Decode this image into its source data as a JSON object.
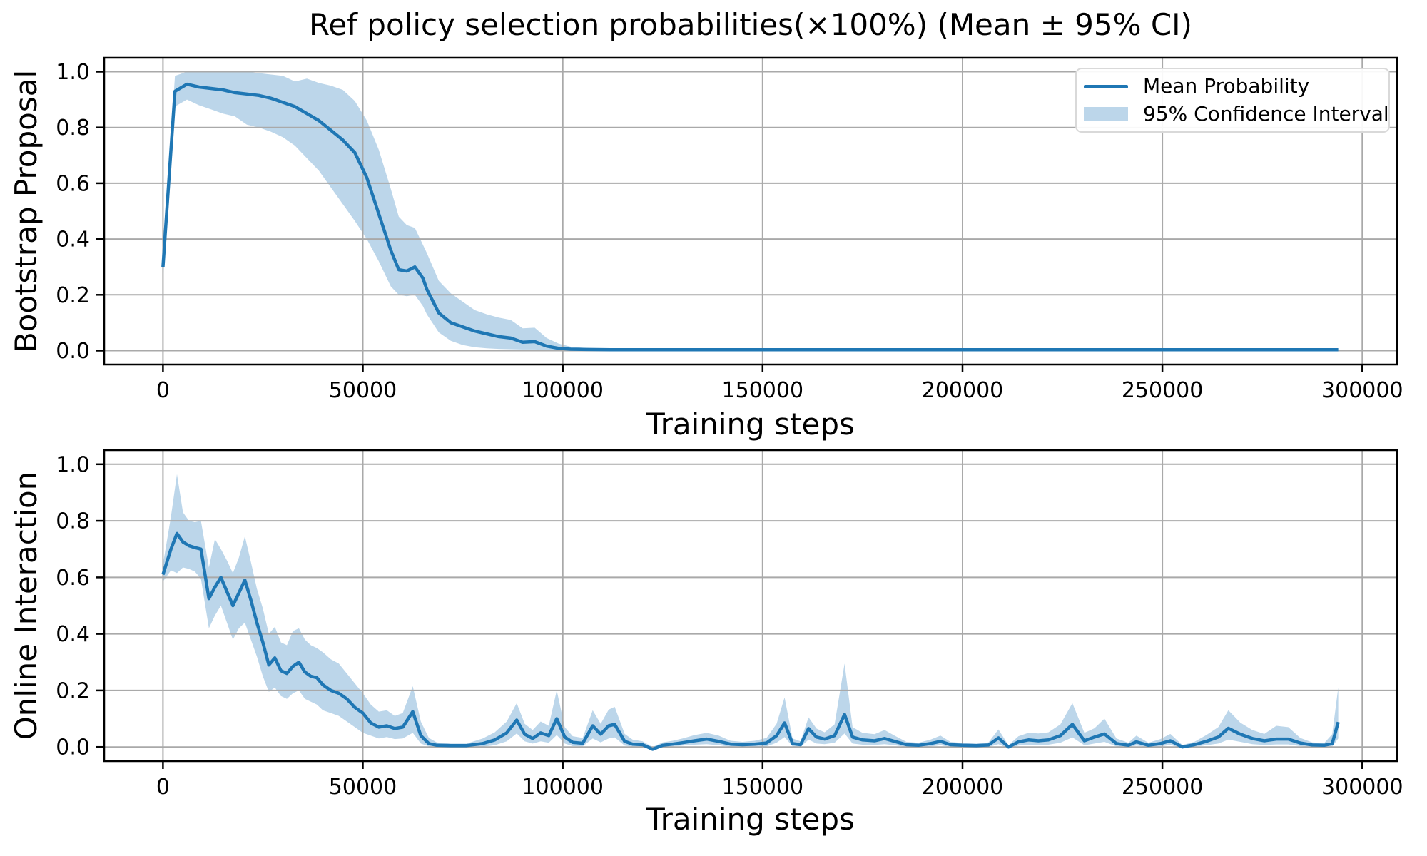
{
  "figure": {
    "title": "Ref policy selection probabilities(×100%) (Mean ± 95% CI)",
    "background": "#ffffff"
  },
  "legend": {
    "items": [
      {
        "label": "Mean Probability",
        "swatch": "line"
      },
      {
        "label": "95% Confidence Interval",
        "swatch": "patch"
      }
    ]
  },
  "colors": {
    "mean_line": "#1f77b4",
    "ci_band": "#bcd6ea",
    "grid": "#a9a9a9",
    "spine": "#000000",
    "text": "#000000",
    "legend_border": "#d9d9d9"
  },
  "chart_data": [
    {
      "type": "line",
      "ylabel": "Bootstrap Proposal",
      "xlabel": "Training steps",
      "xlim": [
        -14700,
        308700
      ],
      "ylim": [
        -0.05,
        1.05
      ],
      "xticks": [
        0,
        50000,
        100000,
        150000,
        200000,
        250000,
        300000
      ],
      "xtick_labels": [
        "0",
        "50000",
        "100000",
        "150000",
        "200000",
        "250000",
        "300000"
      ],
      "yticks": [
        0.0,
        0.2,
        0.4,
        0.6,
        0.8,
        1.0
      ],
      "ytick_labels": [
        "0.0",
        "0.2",
        "0.4",
        "0.6",
        "0.8",
        "1.0"
      ],
      "grid": true,
      "series_name": "Mean Probability",
      "band_name": "95% Confidence Interval",
      "columns": [
        "training_step",
        "mean",
        "ci_low",
        "ci_high"
      ],
      "points": [
        [
          0,
          0.3,
          0.25,
          0.345
        ],
        [
          3000,
          0.93,
          0.875,
          0.985
        ],
        [
          6000,
          0.955,
          0.9,
          1.0
        ],
        [
          9000,
          0.945,
          0.88,
          1.0
        ],
        [
          12000,
          0.94,
          0.865,
          1.0
        ],
        [
          15000,
          0.935,
          0.85,
          1.0
        ],
        [
          18000,
          0.925,
          0.84,
          1.0
        ],
        [
          21000,
          0.92,
          0.81,
          1.0
        ],
        [
          24000,
          0.915,
          0.8,
          0.995
        ],
        [
          27000,
          0.905,
          0.785,
          0.99
        ],
        [
          30000,
          0.89,
          0.765,
          0.985
        ],
        [
          33000,
          0.875,
          0.735,
          0.965
        ],
        [
          36000,
          0.85,
          0.69,
          0.975
        ],
        [
          39000,
          0.825,
          0.645,
          0.96
        ],
        [
          42000,
          0.79,
          0.585,
          0.95
        ],
        [
          45000,
          0.755,
          0.525,
          0.935
        ],
        [
          48000,
          0.71,
          0.465,
          0.895
        ],
        [
          51000,
          0.62,
          0.4,
          0.825
        ],
        [
          54000,
          0.49,
          0.32,
          0.72
        ],
        [
          57000,
          0.36,
          0.23,
          0.58
        ],
        [
          59000,
          0.29,
          0.2,
          0.48
        ],
        [
          61000,
          0.285,
          0.195,
          0.45
        ],
        [
          63000,
          0.3,
          0.2,
          0.44
        ],
        [
          65000,
          0.26,
          0.16,
          0.38
        ],
        [
          66000,
          0.22,
          0.13,
          0.35
        ],
        [
          69000,
          0.135,
          0.065,
          0.25
        ],
        [
          72000,
          0.1,
          0.035,
          0.205
        ],
        [
          75000,
          0.085,
          0.02,
          0.175
        ],
        [
          78000,
          0.07,
          0.012,
          0.145
        ],
        [
          81000,
          0.06,
          0.008,
          0.13
        ],
        [
          84000,
          0.05,
          0.006,
          0.118
        ],
        [
          87000,
          0.045,
          0.005,
          0.11
        ],
        [
          90000,
          0.03,
          0.004,
          0.08
        ],
        [
          93000,
          0.032,
          0.004,
          0.082
        ],
        [
          96000,
          0.016,
          0.003,
          0.045
        ],
        [
          99000,
          0.008,
          0.002,
          0.025
        ],
        [
          102000,
          0.005,
          0.002,
          0.014
        ],
        [
          106000,
          0.004,
          0.001,
          0.009
        ],
        [
          112000,
          0.003,
          0.001,
          0.006
        ],
        [
          120000,
          0.003,
          0.001,
          0.005
        ],
        [
          135000,
          0.003,
          0.001,
          0.005
        ],
        [
          150000,
          0.003,
          0.001,
          0.005
        ],
        [
          165000,
          0.003,
          0.001,
          0.005
        ],
        [
          180000,
          0.003,
          0.001,
          0.005
        ],
        [
          195000,
          0.003,
          0.001,
          0.005
        ],
        [
          210000,
          0.003,
          0.001,
          0.005
        ],
        [
          225000,
          0.003,
          0.001,
          0.005
        ],
        [
          240000,
          0.003,
          0.001,
          0.005
        ],
        [
          255000,
          0.003,
          0.001,
          0.005
        ],
        [
          270000,
          0.003,
          0.001,
          0.005
        ],
        [
          285000,
          0.003,
          0.001,
          0.005
        ],
        [
          294000,
          0.003,
          0.001,
          0.005
        ]
      ]
    },
    {
      "type": "line",
      "ylabel": "Online Interaction",
      "xlabel": "Training steps",
      "xlim": [
        -14700,
        308700
      ],
      "ylim": [
        -0.05,
        1.05
      ],
      "xticks": [
        0,
        50000,
        100000,
        150000,
        200000,
        250000,
        300000
      ],
      "xtick_labels": [
        "0",
        "50000",
        "100000",
        "150000",
        "200000",
        "250000",
        "300000"
      ],
      "yticks": [
        0.0,
        0.2,
        0.4,
        0.6,
        0.8,
        1.0
      ],
      "ytick_labels": [
        "0.0",
        "0.2",
        "0.4",
        "0.6",
        "0.8",
        "1.0"
      ],
      "grid": true,
      "series_name": "Mean Probability",
      "band_name": "95% Confidence Interval",
      "columns": [
        "training_step",
        "mean",
        "ci_low",
        "ci_high"
      ],
      "points": [
        [
          0,
          0.61,
          0.585,
          0.645
        ],
        [
          2000,
          0.7,
          0.625,
          0.815
        ],
        [
          3500,
          0.755,
          0.615,
          0.965
        ],
        [
          5000,
          0.725,
          0.635,
          0.83
        ],
        [
          6500,
          0.712,
          0.63,
          0.8
        ],
        [
          8000,
          0.705,
          0.62,
          0.795
        ],
        [
          9500,
          0.7,
          0.595,
          0.8
        ],
        [
          11500,
          0.525,
          0.42,
          0.635
        ],
        [
          13000,
          0.565,
          0.465,
          0.735
        ],
        [
          14500,
          0.6,
          0.5,
          0.7
        ],
        [
          16000,
          0.55,
          0.44,
          0.66
        ],
        [
          17500,
          0.5,
          0.38,
          0.615
        ],
        [
          19000,
          0.545,
          0.42,
          0.67
        ],
        [
          20500,
          0.59,
          0.44,
          0.745
        ],
        [
          22000,
          0.52,
          0.38,
          0.655
        ],
        [
          23500,
          0.44,
          0.32,
          0.56
        ],
        [
          25000,
          0.37,
          0.25,
          0.49
        ],
        [
          26500,
          0.29,
          0.195,
          0.4
        ],
        [
          28000,
          0.315,
          0.21,
          0.425
        ],
        [
          29500,
          0.27,
          0.18,
          0.37
        ],
        [
          31000,
          0.26,
          0.17,
          0.36
        ],
        [
          32500,
          0.285,
          0.19,
          0.41
        ],
        [
          34000,
          0.3,
          0.2,
          0.42
        ],
        [
          35500,
          0.265,
          0.17,
          0.38
        ],
        [
          37000,
          0.25,
          0.16,
          0.36
        ],
        [
          38500,
          0.245,
          0.15,
          0.35
        ],
        [
          40000,
          0.22,
          0.13,
          0.335
        ],
        [
          42000,
          0.2,
          0.12,
          0.31
        ],
        [
          44000,
          0.19,
          0.11,
          0.295
        ],
        [
          46000,
          0.17,
          0.09,
          0.26
        ],
        [
          48000,
          0.14,
          0.07,
          0.225
        ],
        [
          50000,
          0.12,
          0.05,
          0.19
        ],
        [
          52000,
          0.085,
          0.04,
          0.15
        ],
        [
          54000,
          0.07,
          0.03,
          0.125
        ],
        [
          56000,
          0.075,
          0.035,
          0.13
        ],
        [
          58000,
          0.065,
          0.028,
          0.11
        ],
        [
          60000,
          0.07,
          0.03,
          0.12
        ],
        [
          62500,
          0.125,
          0.05,
          0.215
        ],
        [
          64500,
          0.04,
          0.012,
          0.09
        ],
        [
          66500,
          0.012,
          0.002,
          0.032
        ],
        [
          68500,
          0.006,
          0.0,
          0.016
        ],
        [
          72000,
          0.005,
          0.0,
          0.012
        ],
        [
          76000,
          0.005,
          0.0,
          0.012
        ],
        [
          80000,
          0.012,
          0.001,
          0.03
        ],
        [
          83000,
          0.025,
          0.006,
          0.052
        ],
        [
          86000,
          0.05,
          0.02,
          0.09
        ],
        [
          88500,
          0.095,
          0.048,
          0.155
        ],
        [
          90500,
          0.045,
          0.02,
          0.082
        ],
        [
          92500,
          0.03,
          0.012,
          0.06
        ],
        [
          94500,
          0.05,
          0.02,
          0.09
        ],
        [
          96500,
          0.04,
          0.015,
          0.075
        ],
        [
          98500,
          0.1,
          0.042,
          0.2
        ],
        [
          100500,
          0.035,
          0.012,
          0.07
        ],
        [
          102500,
          0.016,
          0.003,
          0.038
        ],
        [
          105000,
          0.013,
          0.002,
          0.032
        ],
        [
          107500,
          0.075,
          0.03,
          0.13
        ],
        [
          109500,
          0.045,
          0.016,
          0.082
        ],
        [
          111500,
          0.075,
          0.03,
          0.132
        ],
        [
          113000,
          0.08,
          0.034,
          0.142
        ],
        [
          115500,
          0.02,
          0.005,
          0.046
        ],
        [
          117500,
          0.01,
          0.001,
          0.026
        ],
        [
          120000,
          0.008,
          0.0,
          0.02
        ],
        [
          122500,
          -0.008,
          -0.012,
          0.0
        ],
        [
          125000,
          0.006,
          0.0,
          0.016
        ],
        [
          127500,
          0.01,
          0.002,
          0.022
        ],
        [
          130000,
          0.015,
          0.005,
          0.03
        ],
        [
          133000,
          0.022,
          0.008,
          0.042
        ],
        [
          136000,
          0.028,
          0.01,
          0.05
        ],
        [
          139000,
          0.02,
          0.006,
          0.04
        ],
        [
          142000,
          0.01,
          0.001,
          0.022
        ],
        [
          145000,
          0.008,
          0.0,
          0.018
        ],
        [
          148000,
          0.01,
          0.001,
          0.022
        ],
        [
          151000,
          0.014,
          0.002,
          0.032
        ],
        [
          153500,
          0.04,
          0.015,
          0.082
        ],
        [
          155500,
          0.085,
          0.035,
          0.175
        ],
        [
          157500,
          0.012,
          0.002,
          0.03
        ],
        [
          159500,
          0.008,
          0.0,
          0.02
        ],
        [
          161500,
          0.065,
          0.026,
          0.105
        ],
        [
          163500,
          0.035,
          0.012,
          0.065
        ],
        [
          165500,
          0.028,
          0.01,
          0.052
        ],
        [
          168000,
          0.04,
          0.015,
          0.08
        ],
        [
          170500,
          0.115,
          0.048,
          0.295
        ],
        [
          172500,
          0.035,
          0.012,
          0.07
        ],
        [
          175000,
          0.025,
          0.008,
          0.05
        ],
        [
          178000,
          0.022,
          0.007,
          0.045
        ],
        [
          180500,
          0.03,
          0.01,
          0.06
        ],
        [
          183000,
          0.02,
          0.006,
          0.04
        ],
        [
          186000,
          0.008,
          0.0,
          0.018
        ],
        [
          189000,
          0.006,
          0.0,
          0.015
        ],
        [
          192000,
          0.012,
          0.002,
          0.026
        ],
        [
          194500,
          0.02,
          0.006,
          0.04
        ],
        [
          197000,
          0.008,
          0.0,
          0.018
        ],
        [
          200000,
          0.006,
          0.0,
          0.014
        ],
        [
          203500,
          0.005,
          0.0,
          0.012
        ],
        [
          206500,
          0.007,
          0.0,
          0.016
        ],
        [
          209000,
          0.032,
          0.01,
          0.062
        ],
        [
          211500,
          0.0,
          -0.005,
          0.006
        ],
        [
          214000,
          0.018,
          0.005,
          0.038
        ],
        [
          216500,
          0.025,
          0.008,
          0.05
        ],
        [
          219000,
          0.022,
          0.007,
          0.048
        ],
        [
          221500,
          0.025,
          0.008,
          0.052
        ],
        [
          224500,
          0.04,
          0.015,
          0.08
        ],
        [
          227500,
          0.08,
          0.034,
          0.155
        ],
        [
          230500,
          0.022,
          0.006,
          0.05
        ],
        [
          233000,
          0.035,
          0.012,
          0.066
        ],
        [
          235500,
          0.046,
          0.018,
          0.1
        ],
        [
          238500,
          0.012,
          0.002,
          0.03
        ],
        [
          241500,
          0.006,
          0.0,
          0.015
        ],
        [
          243500,
          0.018,
          0.005,
          0.04
        ],
        [
          246500,
          0.006,
          0.0,
          0.015
        ],
        [
          249500,
          0.012,
          0.002,
          0.028
        ],
        [
          252000,
          0.022,
          0.007,
          0.046
        ],
        [
          255000,
          0.0,
          -0.004,
          0.007
        ],
        [
          258000,
          0.008,
          0.001,
          0.018
        ],
        [
          261000,
          0.02,
          0.006,
          0.042
        ],
        [
          264000,
          0.035,
          0.012,
          0.07
        ],
        [
          266500,
          0.066,
          0.026,
          0.13
        ],
        [
          269500,
          0.045,
          0.018,
          0.086
        ],
        [
          272500,
          0.03,
          0.01,
          0.06
        ],
        [
          275500,
          0.022,
          0.007,
          0.046
        ],
        [
          278500,
          0.028,
          0.009,
          0.075
        ],
        [
          281500,
          0.028,
          0.009,
          0.07
        ],
        [
          284500,
          0.014,
          0.003,
          0.032
        ],
        [
          287500,
          0.007,
          0.0,
          0.016
        ],
        [
          290500,
          0.006,
          0.0,
          0.014
        ],
        [
          292500,
          0.012,
          0.001,
          0.045
        ],
        [
          294000,
          0.088,
          0.03,
          0.21
        ]
      ]
    }
  ]
}
